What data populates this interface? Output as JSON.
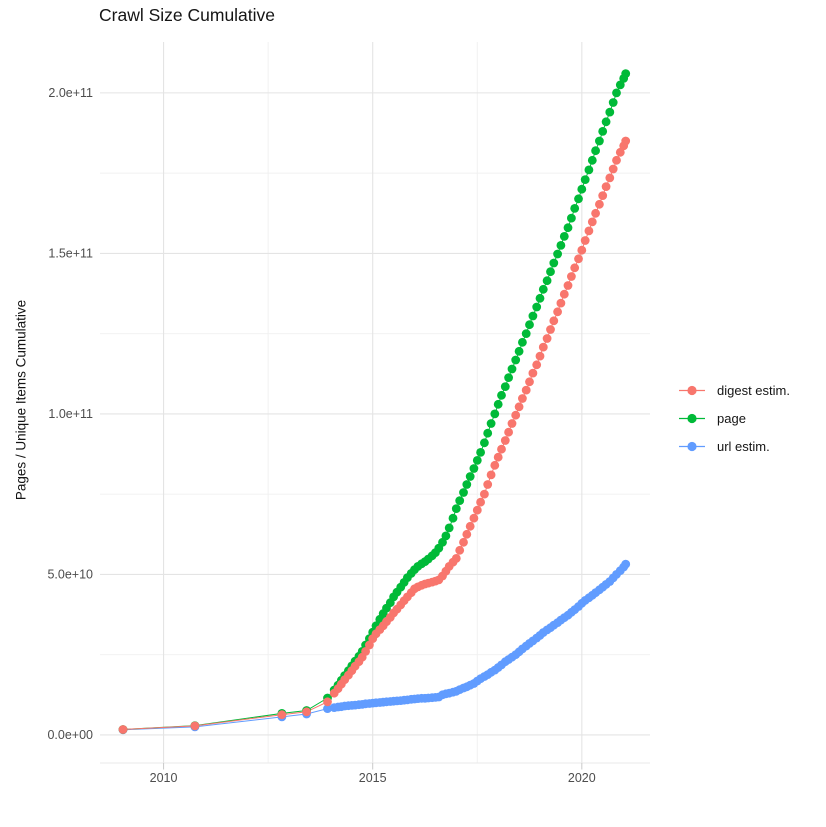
{
  "page": {
    "title": "Crawl Size Cumulative"
  },
  "chart_data": {
    "type": "scatter",
    "title": "Crawl Size Cumulative",
    "xlabel": "",
    "ylabel": "Pages / Unique Items Cumulative",
    "legend_position": "right-center",
    "grid": true,
    "values_unit": "billions (1e9); e.g. 206 = 2.06e+11",
    "x_range": [
      2008.48,
      2021.63
    ],
    "y_range": [
      -8.75,
      215.85
    ],
    "x_ticks": [
      {
        "v": 2010,
        "label": "2010"
      },
      {
        "v": 2015,
        "label": "2015"
      },
      {
        "v": 2020,
        "label": "2020"
      }
    ],
    "x_minor": [
      2012.5,
      2017.5
    ],
    "y_ticks": [
      {
        "v": 0,
        "label": "0.0e+00"
      },
      {
        "v": 50,
        "label": "5.0e+10"
      },
      {
        "v": 100,
        "label": "1.0e+11"
      },
      {
        "v": 150,
        "label": "1.5e+11"
      },
      {
        "v": 200,
        "label": "2.0e+11"
      }
    ],
    "y_minor": [
      25,
      75,
      125,
      175
    ],
    "draw_order": [
      2,
      1,
      0
    ],
    "series": [
      {
        "name": "digest estim.",
        "color": "#F8766D",
        "points": [
          [
            2009.03,
            1.7
          ],
          [
            2010.75,
            2.8
          ],
          [
            2012.83,
            6.3
          ],
          [
            2013.42,
            7.2
          ],
          [
            2013.92,
            10.3
          ],
          [
            2014.08,
            13
          ],
          [
            2014.17,
            14.4
          ],
          [
            2014.25,
            15.8
          ],
          [
            2014.33,
            17.2
          ],
          [
            2014.42,
            18.6
          ],
          [
            2014.5,
            20
          ],
          [
            2014.58,
            21.4
          ],
          [
            2014.67,
            22.8
          ],
          [
            2014.75,
            24.2
          ],
          [
            2014.83,
            26
          ],
          [
            2014.92,
            28
          ],
          [
            2015,
            30
          ],
          [
            2015.08,
            31.5
          ],
          [
            2015.17,
            32.8
          ],
          [
            2015.25,
            34
          ],
          [
            2015.33,
            35.3
          ],
          [
            2015.42,
            36.6
          ],
          [
            2015.5,
            38
          ],
          [
            2015.58,
            39.2
          ],
          [
            2015.67,
            40.5
          ],
          [
            2015.75,
            41.8
          ],
          [
            2015.83,
            43
          ],
          [
            2015.92,
            44.3
          ],
          [
            2016,
            45.5
          ],
          [
            2016.08,
            46.1
          ],
          [
            2016.17,
            46.6
          ],
          [
            2016.25,
            47
          ],
          [
            2016.33,
            47.3
          ],
          [
            2016.42,
            47.6
          ],
          [
            2016.5,
            47.9
          ],
          [
            2016.58,
            48.3
          ],
          [
            2016.67,
            49.5
          ],
          [
            2016.75,
            51
          ],
          [
            2016.83,
            52.5
          ],
          [
            2016.92,
            53.8
          ],
          [
            2017,
            55
          ],
          [
            2017.08,
            57.5
          ],
          [
            2017.17,
            60
          ],
          [
            2017.25,
            62.5
          ],
          [
            2017.33,
            65
          ],
          [
            2017.42,
            67.5
          ],
          [
            2017.5,
            70
          ],
          [
            2017.58,
            72.5
          ],
          [
            2017.67,
            75
          ],
          [
            2017.75,
            78
          ],
          [
            2017.83,
            81
          ],
          [
            2017.92,
            84
          ],
          [
            2018,
            86.5
          ],
          [
            2018.08,
            89
          ],
          [
            2018.17,
            91.7
          ],
          [
            2018.25,
            94.3
          ],
          [
            2018.33,
            97
          ],
          [
            2018.42,
            99.6
          ],
          [
            2018.5,
            102.2
          ],
          [
            2018.58,
            104.8
          ],
          [
            2018.67,
            107.4
          ],
          [
            2018.75,
            110
          ],
          [
            2018.83,
            112.7
          ],
          [
            2018.92,
            115.3
          ],
          [
            2019,
            118
          ],
          [
            2019.08,
            120.8
          ],
          [
            2019.17,
            123.5
          ],
          [
            2019.25,
            126.3
          ],
          [
            2019.33,
            129
          ],
          [
            2019.42,
            131.8
          ],
          [
            2019.5,
            134.5
          ],
          [
            2019.58,
            137.3
          ],
          [
            2019.67,
            140
          ],
          [
            2019.75,
            142.8
          ],
          [
            2019.83,
            145.5
          ],
          [
            2019.92,
            148.3
          ],
          [
            2020,
            151
          ],
          [
            2020.08,
            154
          ],
          [
            2020.17,
            157
          ],
          [
            2020.25,
            159.8
          ],
          [
            2020.33,
            162.5
          ],
          [
            2020.42,
            165.3
          ],
          [
            2020.5,
            168
          ],
          [
            2020.58,
            170.8
          ],
          [
            2020.67,
            173.5
          ],
          [
            2020.75,
            176.3
          ],
          [
            2020.83,
            179
          ],
          [
            2020.92,
            181.5
          ],
          [
            2021,
            183.5
          ],
          [
            2021.05,
            185
          ]
        ]
      },
      {
        "name": "page",
        "color": "#00BA38",
        "points": [
          [
            2009.03,
            1.7
          ],
          [
            2010.75,
            2.9
          ],
          [
            2012.83,
            6.7
          ],
          [
            2013.42,
            7.6
          ],
          [
            2013.92,
            11.5
          ],
          [
            2014.08,
            14
          ],
          [
            2014.17,
            15.5
          ],
          [
            2014.25,
            17
          ],
          [
            2014.33,
            18.5
          ],
          [
            2014.42,
            20
          ],
          [
            2014.5,
            21.5
          ],
          [
            2014.58,
            23
          ],
          [
            2014.67,
            24.5
          ],
          [
            2014.75,
            26
          ],
          [
            2014.83,
            28
          ],
          [
            2014.92,
            30
          ],
          [
            2015,
            32
          ],
          [
            2015.08,
            34
          ],
          [
            2015.17,
            36
          ],
          [
            2015.25,
            37.8
          ],
          [
            2015.33,
            39.5
          ],
          [
            2015.42,
            41.2
          ],
          [
            2015.5,
            43
          ],
          [
            2015.58,
            44.5
          ],
          [
            2015.67,
            46
          ],
          [
            2015.75,
            47.5
          ],
          [
            2015.83,
            49
          ],
          [
            2015.92,
            50.3
          ],
          [
            2016,
            51.5
          ],
          [
            2016.08,
            52.5
          ],
          [
            2016.17,
            53.3
          ],
          [
            2016.25,
            54
          ],
          [
            2016.33,
            54.8
          ],
          [
            2016.42,
            55.8
          ],
          [
            2016.5,
            56.8
          ],
          [
            2016.58,
            58.2
          ],
          [
            2016.67,
            60
          ],
          [
            2016.75,
            62
          ],
          [
            2016.83,
            64.5
          ],
          [
            2016.92,
            67.5
          ],
          [
            2017,
            70.5
          ],
          [
            2017.08,
            73
          ],
          [
            2017.17,
            75.5
          ],
          [
            2017.25,
            78
          ],
          [
            2017.33,
            80.5
          ],
          [
            2017.42,
            83
          ],
          [
            2017.5,
            85.5
          ],
          [
            2017.58,
            88
          ],
          [
            2017.67,
            91
          ],
          [
            2017.75,
            94
          ],
          [
            2017.83,
            97
          ],
          [
            2017.92,
            100
          ],
          [
            2018,
            103
          ],
          [
            2018.08,
            105.8
          ],
          [
            2018.17,
            108.5
          ],
          [
            2018.25,
            111.3
          ],
          [
            2018.33,
            114
          ],
          [
            2018.42,
            116.8
          ],
          [
            2018.5,
            119.5
          ],
          [
            2018.58,
            122.3
          ],
          [
            2018.67,
            125
          ],
          [
            2018.75,
            127.8
          ],
          [
            2018.83,
            130.5
          ],
          [
            2018.92,
            133.3
          ],
          [
            2019,
            136
          ],
          [
            2019.08,
            138.8
          ],
          [
            2019.17,
            141.5
          ],
          [
            2019.25,
            144.3
          ],
          [
            2019.33,
            147
          ],
          [
            2019.42,
            149.8
          ],
          [
            2019.5,
            152.5
          ],
          [
            2019.58,
            155.3
          ],
          [
            2019.67,
            158
          ],
          [
            2019.75,
            161
          ],
          [
            2019.83,
            164
          ],
          [
            2019.92,
            167
          ],
          [
            2020,
            170
          ],
          [
            2020.08,
            173
          ],
          [
            2020.17,
            176
          ],
          [
            2020.25,
            179
          ],
          [
            2020.33,
            182
          ],
          [
            2020.42,
            185
          ],
          [
            2020.5,
            188
          ],
          [
            2020.58,
            191
          ],
          [
            2020.67,
            194
          ],
          [
            2020.75,
            197
          ],
          [
            2020.83,
            200
          ],
          [
            2020.92,
            202.5
          ],
          [
            2021,
            204.5
          ],
          [
            2021.05,
            206
          ]
        ]
      },
      {
        "name": "url estim.",
        "color": "#619CFF",
        "points": [
          [
            2009.03,
            1.6
          ],
          [
            2010.75,
            2.5
          ],
          [
            2012.83,
            5.6
          ],
          [
            2013.42,
            6.5
          ],
          [
            2013.92,
            8.2
          ],
          [
            2014.08,
            8.5
          ],
          [
            2014.17,
            8.7
          ],
          [
            2014.25,
            8.8
          ],
          [
            2014.33,
            9
          ],
          [
            2014.42,
            9.1
          ],
          [
            2014.5,
            9.2
          ],
          [
            2014.58,
            9.3
          ],
          [
            2014.67,
            9.4
          ],
          [
            2014.75,
            9.5
          ],
          [
            2014.83,
            9.7
          ],
          [
            2014.92,
            9.8
          ],
          [
            2015,
            9.9
          ],
          [
            2015.08,
            10
          ],
          [
            2015.17,
            10.1
          ],
          [
            2015.25,
            10.2
          ],
          [
            2015.33,
            10.3
          ],
          [
            2015.42,
            10.4
          ],
          [
            2015.5,
            10.5
          ],
          [
            2015.58,
            10.6
          ],
          [
            2015.67,
            10.7
          ],
          [
            2015.75,
            10.8
          ],
          [
            2015.83,
            10.9
          ],
          [
            2015.92,
            11.1
          ],
          [
            2016,
            11.2
          ],
          [
            2016.08,
            11.3
          ],
          [
            2016.17,
            11.4
          ],
          [
            2016.25,
            11.4
          ],
          [
            2016.33,
            11.5
          ],
          [
            2016.42,
            11.6
          ],
          [
            2016.5,
            11.7
          ],
          [
            2016.58,
            11.8
          ],
          [
            2016.67,
            12.5
          ],
          [
            2016.75,
            12.8
          ],
          [
            2016.83,
            13
          ],
          [
            2016.92,
            13.3
          ],
          [
            2017,
            13.6
          ],
          [
            2017.08,
            14.1
          ],
          [
            2017.17,
            14.6
          ],
          [
            2017.25,
            15
          ],
          [
            2017.33,
            15.5
          ],
          [
            2017.42,
            16
          ],
          [
            2017.5,
            16.8
          ],
          [
            2017.58,
            17.5
          ],
          [
            2017.67,
            18.2
          ],
          [
            2017.75,
            18.8
          ],
          [
            2017.83,
            19.5
          ],
          [
            2017.92,
            20.2
          ],
          [
            2018,
            21
          ],
          [
            2018.08,
            21.8
          ],
          [
            2018.17,
            22.8
          ],
          [
            2018.25,
            23.5
          ],
          [
            2018.33,
            24.2
          ],
          [
            2018.42,
            25
          ],
          [
            2018.5,
            25.9
          ],
          [
            2018.58,
            26.8
          ],
          [
            2018.67,
            27.7
          ],
          [
            2018.75,
            28.5
          ],
          [
            2018.83,
            29.3
          ],
          [
            2018.92,
            30.2
          ],
          [
            2019,
            31
          ],
          [
            2019.08,
            31.9
          ],
          [
            2019.17,
            32.7
          ],
          [
            2019.25,
            33.4
          ],
          [
            2019.33,
            34.2
          ],
          [
            2019.42,
            35
          ],
          [
            2019.5,
            35.8
          ],
          [
            2019.58,
            36.5
          ],
          [
            2019.67,
            37.3
          ],
          [
            2019.75,
            38.2
          ],
          [
            2019.83,
            39
          ],
          [
            2019.92,
            40
          ],
          [
            2020,
            41
          ],
          [
            2020.08,
            41.9
          ],
          [
            2020.17,
            42.7
          ],
          [
            2020.25,
            43.5
          ],
          [
            2020.33,
            44.3
          ],
          [
            2020.42,
            45.2
          ],
          [
            2020.5,
            46
          ],
          [
            2020.58,
            46.9
          ],
          [
            2020.67,
            47.8
          ],
          [
            2020.75,
            48.9
          ],
          [
            2020.83,
            50
          ],
          [
            2020.92,
            51.2
          ],
          [
            2021,
            52.3
          ],
          [
            2021.05,
            53.2
          ]
        ]
      }
    ]
  }
}
